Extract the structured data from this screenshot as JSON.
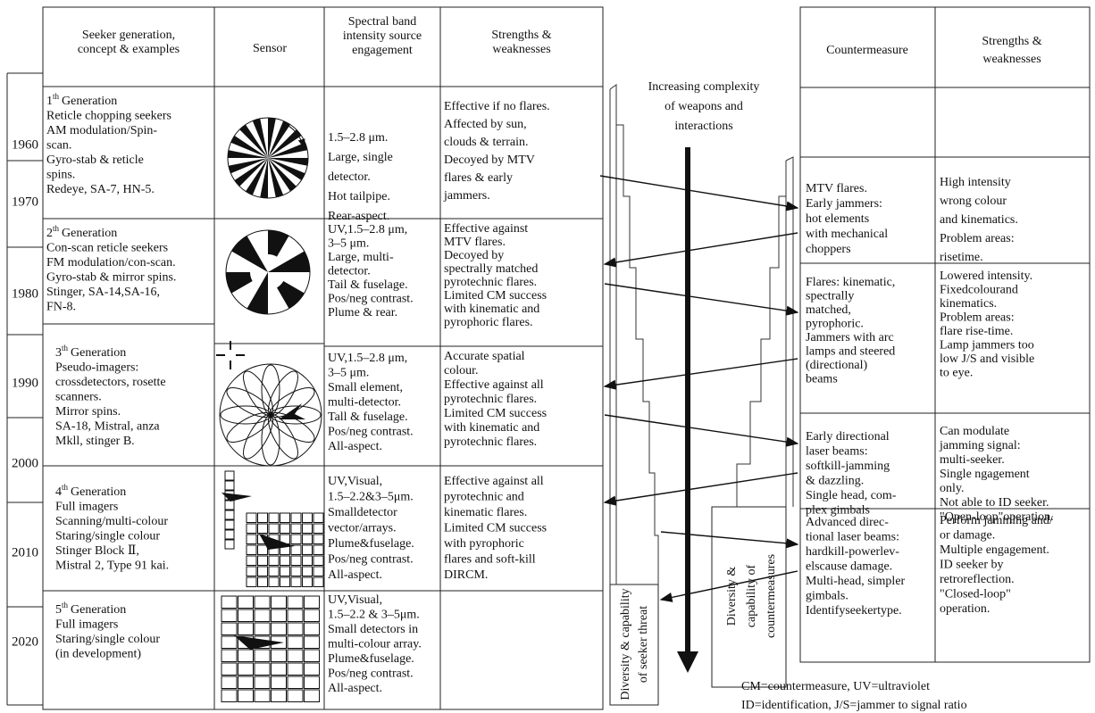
{
  "years": [
    "1960",
    "1970",
    "1980",
    "1990",
    "2000",
    "2010",
    "2020"
  ],
  "seeker_table": {
    "headers": [
      [
        "Seeker generation,",
        "concept & examples"
      ],
      [
        "Sensor"
      ],
      [
        "Spectral band",
        "intensity source",
        "engagement"
      ],
      [
        "Strengths &",
        "weaknesses"
      ]
    ],
    "rows": [
      {
        "generation": {
          "number": "1",
          "suffix": "th",
          "word": "Generation"
        },
        "concept": [
          "Reticle chopping seekers",
          "AM modulation/Spin-",
          "scan.",
          "Gyro-stab & reticle",
          "spins.",
          "Redeye, SA-7, HN-5."
        ],
        "spectral": [
          "1.5–2.8 μm.",
          "Large, single",
          "detector.",
          "Hot tailpipe.",
          "Rear-aspect."
        ],
        "strengths": [
          "Effective if no flares.",
          "Affected by sun,",
          "clouds & terrain.",
          "Decoyed by MTV",
          "flares & early",
          "jammers."
        ]
      },
      {
        "generation": {
          "number": "2",
          "suffix": "th",
          "word": "Generation"
        },
        "concept": [
          "Con-scan reticle seekers",
          "FM modulation/con-scan.",
          "Gyro-stab & mirror spins.",
          "Stinger, SA-14,SA-16,",
          "FN-8."
        ],
        "spectral": [
          "UV,1.5–2.8 μm,",
          "3–5 μm.",
          "Large, multi-",
          "detector.",
          "Tail & fuselage.",
          "Pos/neg contrast.",
          "Plume & rear."
        ],
        "strengths": [
          "Effective against",
          "MTV flares.",
          "Decoyed by",
          "spectrally matched",
          "pyrotechnic flares.",
          "Limited CM success",
          "with kinematic and",
          "pyrophoric flares."
        ]
      },
      {
        "generation": {
          "number": "3",
          "suffix": "th",
          "word": "Generation"
        },
        "concept": [
          "Pseudo-imagers:",
          "crossdetectors, rosette",
          "scanners.",
          "Mirror spins.",
          "SA-18, Mistral, anza",
          "Mkll, stinger B."
        ],
        "spectral": [
          "UV,1.5–2.8 μm,",
          "3–5 μm.",
          "Small element,",
          "multi-detector.",
          "Tall & fuselage.",
          "Pos/neg contrast.",
          "All-aspect."
        ],
        "strengths": [
          "Accurate spatial",
          "colour.",
          "Effective against all",
          "pyrotechnic flares.",
          "Limited CM success",
          "with kinematic and",
          "pyrotechnic flares."
        ]
      },
      {
        "generation": {
          "number": "4",
          "suffix": "th",
          "word": "Generation"
        },
        "concept": [
          "Full imagers",
          "Scanning/multi-colour",
          "Staring/single colour",
          "Stinger Block Ⅱ,",
          "Mistral 2, Type 91 kai."
        ],
        "spectral": [
          "UV,Visual,",
          "1.5–2.2&3–5μm.",
          "Smalldetector",
          "vector/arrays.",
          "Plume&fuselage.",
          "Pos/neg contrast.",
          "All-aspect."
        ],
        "strengths": [
          "Effective against all",
          "pyrotechnic and",
          "kinematic flares.",
          "Limited CM success",
          "with pyrophoric",
          "flares and soft-kill",
          "DIRCM."
        ]
      },
      {
        "generation": {
          "number": "5",
          "suffix": "th",
          "word": "Generation"
        },
        "concept": [
          "Full imagers",
          "Staring/single colour",
          "(in development)"
        ],
        "spectral": [
          "UV,Visual,",
          "1.5–2.2 & 3–5μm.",
          "Small detectors in",
          "multi-colour array.",
          "Plume&fuselage.",
          "Pos/neg contrast.",
          "All-aspect."
        ]
      }
    ]
  },
  "complexity_label": [
    "Increasing complexity",
    "of weapons and",
    "interactions"
  ],
  "seeker_threat_label": [
    "Diversity & capability",
    "of seeker threat"
  ],
  "countermeasures_label": [
    "Diversity &",
    "capability of",
    "countermeasures"
  ],
  "countermeasure_table": {
    "headers": [
      [
        "Countermeasure"
      ],
      [
        "Strengths &",
        "weaknesses"
      ]
    ],
    "rows": [
      {
        "countermeasure": [
          "MTV flares.",
          "Early jammers:",
          "hot elements",
          "with mechanical",
          "choppers"
        ],
        "strengths": [
          "High intensity",
          "wrong colour",
          "and kinematics.",
          "Problem areas:",
          "risetime."
        ]
      },
      {
        "countermeasure": [
          "Flares: kinematic,",
          "spectrally",
          "matched,",
          "pyrophoric.",
          "Jammers with arc",
          "lamps and steered",
          "(directional)",
          "beams"
        ],
        "strengths": [
          "Lowered intensity.",
          "Fixedcolourand",
          "kinematics.",
          "Problem areas:",
          "flare rise-time.",
          "Lamp jammers too",
          "low J/S and visible",
          "to eye."
        ]
      },
      {
        "countermeasure": [
          "Early directional",
          "laser beams:",
          "softkill-jamming",
          "& dazzling.",
          "Single head, com-",
          "plex gimbals"
        ],
        "strengths": [
          "Can modulate",
          "jamming signal:",
          "multi-seeker.",
          "Single ngagement",
          "only.",
          "Not able to ID seeker.",
          "\"Open-loop\"operation."
        ]
      },
      {
        "countermeasure": [
          "Advanced direc-",
          "tional laser beams:",
          "hardkill-powerlev-",
          "elscause damage.",
          "Multi-head, simpler",
          "gimbals.",
          "Identifyseekertype."
        ],
        "strengths": [
          "Perform jamming and/",
          "or damage.",
          "Multiple engagement.",
          "ID seeker by",
          "retroreflection.",
          "\"Closed-loop\"",
          "operation."
        ]
      }
    ]
  },
  "footnote": [
    "CM=countermeasure, UV=ultraviolet",
    "ID=identification, J/S=jammer to signal ratio"
  ]
}
